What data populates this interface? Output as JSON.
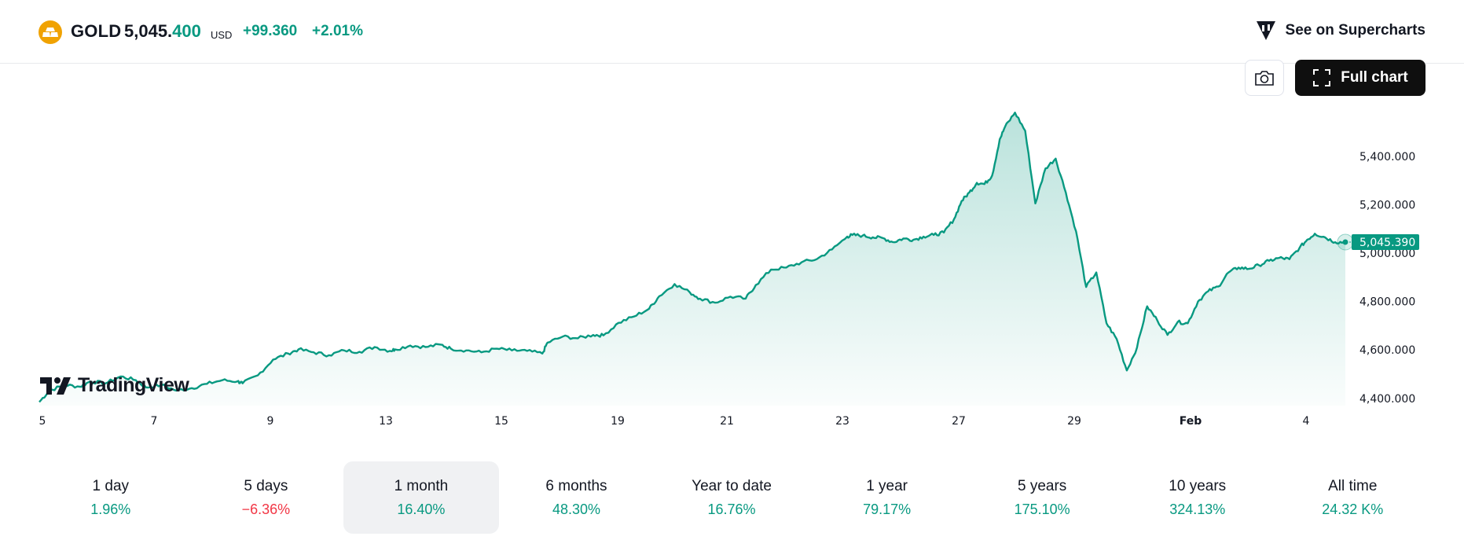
{
  "header": {
    "symbol": "GOLD",
    "price_main": "5,045.",
    "price_hi": "400",
    "currency": "USD",
    "change": "+99.360",
    "change_pct": "+2.01%",
    "supercharts_label": "See on Supercharts",
    "full_chart_label": "Full chart"
  },
  "brand": {
    "name": "TradingView"
  },
  "colors": {
    "line": "#089981",
    "negative": "#f23645",
    "label_bg": "#089981"
  },
  "chart_data": {
    "type": "area",
    "title": "",
    "xlabel": "",
    "ylabel": "",
    "ylim": [
      4370,
      5620
    ],
    "grid": false,
    "y_ticks": [
      "5,400.000",
      "5,200.000",
      "5,000.000",
      "4,800.000",
      "4,600.000",
      "4,400.000"
    ],
    "y_tick_values": [
      5400,
      5200,
      5000,
      4800,
      4600,
      4400
    ],
    "x_ticks": [
      "5",
      "7",
      "9",
      "13",
      "15",
      "19",
      "21",
      "23",
      "27",
      "29",
      "Feb",
      "4"
    ],
    "last_price_label": "5,045.390",
    "last_value": 5045.39,
    "series": [
      {
        "x": [
          0,
          0.2,
          0.5,
          0.8,
          1.0,
          1.3,
          1.6,
          1.9,
          2.1,
          2.4,
          2.7,
          3.0,
          3.3,
          3.6,
          3.9,
          4.0,
          4.3,
          4.6,
          4.9,
          5.1,
          5.4,
          5.7,
          6.0,
          6.3,
          6.6,
          6.9,
          7.0,
          7.3,
          7.6,
          7.9,
          8.1,
          8.4,
          8.7,
          9.0,
          9.3,
          9.6,
          9.9,
          10.0,
          10.3,
          10.6,
          10.9,
          11.1,
          11.4,
          11.7,
          12.0,
          12.2,
          12.5,
          12.8,
          13.0,
          13.3,
          13.6,
          13.9,
          14.1,
          14.4,
          14.7,
          15.0,
          15.3,
          15.6,
          15.9,
          16.0,
          16.2,
          16.4,
          16.6,
          16.8,
          17.0,
          17.2,
          17.4,
          17.6,
          17.8,
          18.0,
          18.15,
          18.3,
          18.45,
          18.6,
          18.75,
          18.9,
          19.0,
          19.2,
          19.4,
          19.6,
          19.8,
          20.0,
          20.2,
          20.4,
          20.6,
          20.8,
          21.0,
          21.2,
          21.4,
          21.6,
          21.8,
          22.0,
          22.2,
          22.4,
          22.6,
          22.8,
          23.0,
          23.2,
          23.4,
          23.6,
          23.8,
          24.0,
          24.2,
          24.4,
          24.6,
          24.8,
          24.95,
          25.1,
          25.3,
          25.5,
          25.7
        ],
        "y": [
          4385,
          4432,
          4455,
          4448,
          4470,
          4462,
          4490,
          4475,
          4445,
          4455,
          4432,
          4442,
          4460,
          4475,
          4470,
          4462,
          4495,
          4560,
          4585,
          4602,
          4590,
          4578,
          4598,
          4592,
          4612,
          4596,
          4602,
          4618,
          4612,
          4622,
          4605,
          4598,
          4590,
          4605,
          4598,
          4596,
          4585,
          4630,
          4655,
          4648,
          4662,
          4660,
          4712,
          4738,
          4770,
          4822,
          4872,
          4838,
          4812,
          4795,
          4820,
          4812,
          4868,
          4932,
          4940,
          4962,
          4975,
          5015,
          5068,
          5075,
          5072,
          5065,
          5062,
          5045,
          5060,
          5055,
          5068,
          5075,
          5085,
          5140,
          5215,
          5250,
          5290,
          5285,
          5320,
          5470,
          5520,
          5580,
          5505,
          5205,
          5350,
          5390,
          5250,
          5090,
          4860,
          4920,
          4710,
          4645,
          4515,
          4610,
          4780,
          4722,
          4662,
          4715,
          4710,
          4800,
          4842,
          4862,
          4920,
          4940,
          4935,
          4950,
          4968,
          4980,
          4975,
          5022,
          5055,
          5080,
          5065,
          5045,
          5045
        ]
      }
    ]
  },
  "periods": [
    {
      "label": "1 day",
      "value": "1.96%",
      "sign": "pos"
    },
    {
      "label": "5 days",
      "value": "−6.36%",
      "sign": "neg"
    },
    {
      "label": "1 month",
      "value": "16.40%",
      "sign": "pos",
      "active": true
    },
    {
      "label": "6 months",
      "value": "48.30%",
      "sign": "pos"
    },
    {
      "label": "Year to date",
      "value": "16.76%",
      "sign": "pos"
    },
    {
      "label": "1 year",
      "value": "79.17%",
      "sign": "pos"
    },
    {
      "label": "5 years",
      "value": "175.10%",
      "sign": "pos"
    },
    {
      "label": "10 years",
      "value": "324.13%",
      "sign": "pos"
    },
    {
      "label": "All time",
      "value": "24.32 K%",
      "sign": "pos"
    }
  ]
}
